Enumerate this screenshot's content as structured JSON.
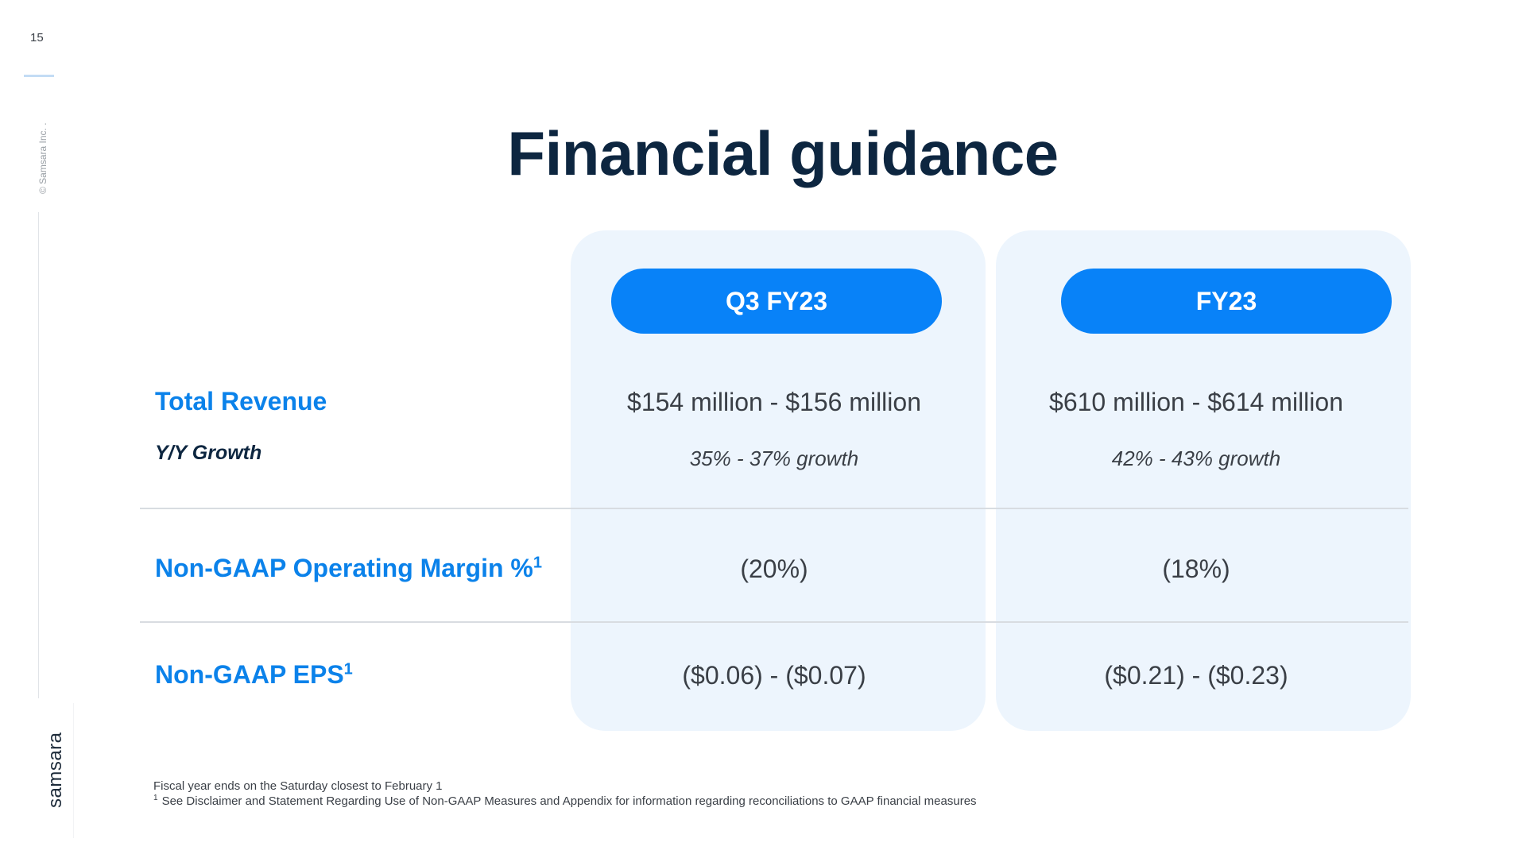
{
  "page": {
    "number": "15",
    "copyright": "© Samsara Inc. .",
    "brand": "samsara"
  },
  "title": "Financial guidance",
  "columns": [
    {
      "label": "Q3 FY23"
    },
    {
      "label": "FY23"
    }
  ],
  "rows": {
    "revenue": {
      "label": "Total Revenue",
      "sub_label": "Y/Y Growth",
      "q3": "$154 million - $156 million",
      "fy": "$610 million - $614 million",
      "q3_growth": "35% - 37% growth",
      "fy_growth": "42% - 43% growth"
    },
    "margin": {
      "label": "Non-GAAP Operating Margin %",
      "footnote_mark": "1",
      "q3": "(20%)",
      "fy": "(18%)"
    },
    "eps": {
      "label": "Non-GAAP EPS",
      "footnote_mark": "1",
      "q3": "($0.06) - ($0.07)",
      "fy": "($0.21) - ($0.23)"
    }
  },
  "footnotes": {
    "fiscal_year": "Fiscal year ends on the Saturday closest to February 1",
    "marker": "1",
    "disclaimer": "See Disclaimer and Statement Regarding Use of Non-GAAP Measures and Appendix for information regarding reconciliations to GAAP financial measures"
  },
  "colors": {
    "accent_blue": "#0882f8",
    "label_blue": "#0b82ea",
    "panel_bg": "#edf5fd",
    "title_navy": "#0d2640"
  }
}
